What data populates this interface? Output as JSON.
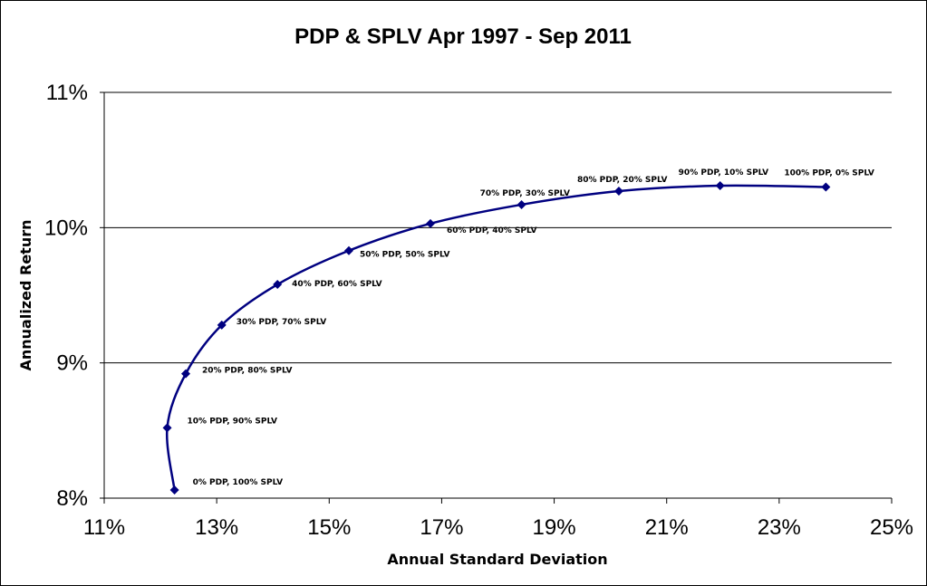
{
  "chart_data": {
    "type": "line",
    "title": "PDP & SPLV  Apr 1997 - Sep 2011",
    "xlabel": "Annual Standard Deviation",
    "ylabel": "Annualized Return",
    "xlim": [
      11,
      25
    ],
    "ylim": [
      8,
      11
    ],
    "x_ticks": [
      11,
      13,
      15,
      17,
      19,
      21,
      23,
      25
    ],
    "x_tick_labels": [
      "11%",
      "13%",
      "15%",
      "17%",
      "19%",
      "21%",
      "23%",
      "25%"
    ],
    "y_ticks": [
      8,
      9,
      10,
      11
    ],
    "y_tick_labels": [
      "8%",
      "9%",
      "10%",
      "11%"
    ],
    "grid": "horizontal",
    "legend": "none",
    "line_color": "#000080",
    "points": [
      {
        "x": 12.25,
        "y": 8.06,
        "label": "0% PDP, 100% SPLV"
      },
      {
        "x": 12.12,
        "y": 8.52,
        "label": "10% PDP, 90% SPLV"
      },
      {
        "x": 12.45,
        "y": 8.92,
        "label": "20% PDP, 80% SPLV"
      },
      {
        "x": 13.09,
        "y": 9.28,
        "label": "30% PDP, 70% SPLV"
      },
      {
        "x": 14.08,
        "y": 9.58,
        "label": "40% PDP, 60% SPLV"
      },
      {
        "x": 15.35,
        "y": 9.83,
        "label": "50% PDP, 50% SPLV"
      },
      {
        "x": 16.8,
        "y": 10.03,
        "label": "60% PDP, 40% SPLV"
      },
      {
        "x": 18.42,
        "y": 10.17,
        "label": "70% PDP, 30% SPLV"
      },
      {
        "x": 20.15,
        "y": 10.27,
        "label": "80% PDP, 20% SPLV"
      },
      {
        "x": 21.95,
        "y": 10.31,
        "label": "90% PDP, 10% SPLV"
      },
      {
        "x": 23.83,
        "y": 10.3,
        "label": "100% PDP, 0% SPLV"
      }
    ]
  }
}
